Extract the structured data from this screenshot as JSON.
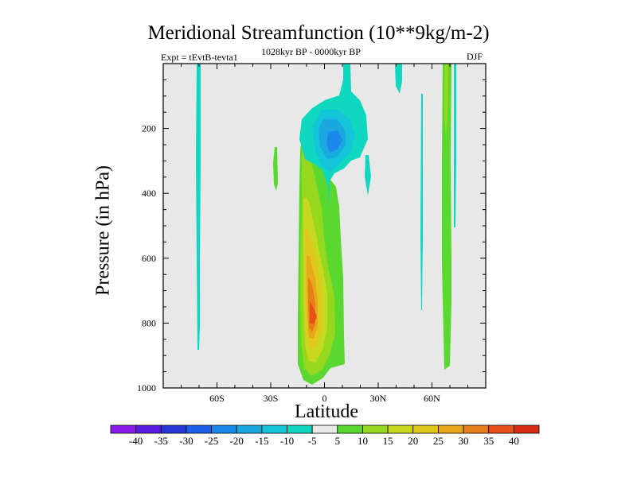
{
  "chart_data": {
    "type": "contour",
    "title": "Meridional Streamfunction (10**9kg/m-2)",
    "left_string": "Expt = tEvtB-tevta1",
    "center_string": "1028kyr BP - 0000kyr BP",
    "right_string": "DJF",
    "xlabel": "Latitude",
    "ylabel": "Pressure (in hPa)",
    "xlim": [
      -90,
      90
    ],
    "ylim": [
      1000,
      0
    ],
    "x_ticks": [
      {
        "value": -60,
        "label": "60S"
      },
      {
        "value": -30,
        "label": "30S"
      },
      {
        "value": 0,
        "label": "0"
      },
      {
        "value": 30,
        "label": "30N"
      },
      {
        "value": 60,
        "label": "60N"
      }
    ],
    "y_ticks": [
      {
        "value": 200,
        "label": "200"
      },
      {
        "value": 400,
        "label": "400"
      },
      {
        "value": 600,
        "label": "600"
      },
      {
        "value": 800,
        "label": "800"
      },
      {
        "value": 1000,
        "label": "1000"
      }
    ],
    "contour_levels": [
      -40,
      -35,
      -30,
      -25,
      -20,
      -15,
      -10,
      -5,
      5,
      10,
      15,
      20,
      25,
      30,
      35,
      40
    ],
    "colors": [
      "#8a1be8",
      "#5a1be0",
      "#2a35d8",
      "#1e5ee8",
      "#1a88e8",
      "#1aa8e0",
      "#14c4d8",
      "#10d8c0",
      "#e8e8e8",
      "#5ad830",
      "#96d81e",
      "#c8d81e",
      "#e0c81e",
      "#e8a81a",
      "#e87e1a",
      "#e8501a",
      "#d82c14"
    ],
    "background_color": "#e8e8e8",
    "features": [
      {
        "name": "tropical-positive-cell",
        "lat": -2,
        "p": 780,
        "peak": 35
      },
      {
        "name": "upper-negative-cell",
        "lat": 5,
        "p": 240,
        "peak": -20
      },
      {
        "name": "northern-midlat-streak",
        "lat": 63,
        "p": 500,
        "peak": 10
      }
    ]
  }
}
